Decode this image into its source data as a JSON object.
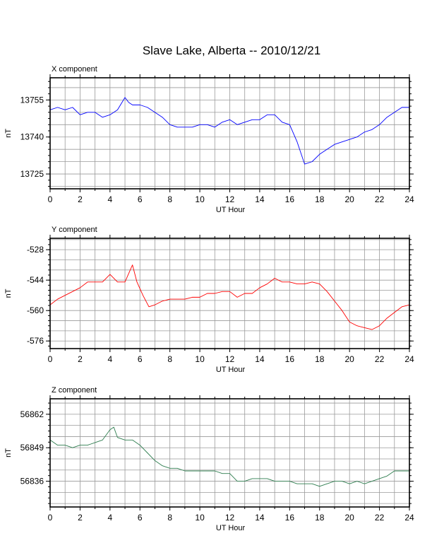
{
  "title": "Slave Lake, Alberta -- 2010/12/21",
  "chart_data": [
    {
      "type": "line",
      "panel_label": "X component",
      "xlabel": "UT Hour",
      "ylabel": "nT",
      "xlim": [
        0,
        24
      ],
      "ylim": [
        13719,
        13764
      ],
      "xticks": [
        0,
        2,
        4,
        6,
        8,
        10,
        12,
        14,
        16,
        18,
        20,
        22,
        24
      ],
      "yticks": [
        13725,
        13740,
        13755
      ],
      "grid": true,
      "color": "#0000ff",
      "series": [
        {
          "x": [
            0,
            0.5,
            1,
            1.5,
            2,
            2.5,
            3,
            3.5,
            4,
            4.5,
            5,
            5.25,
            5.5,
            6,
            6.5,
            7,
            7.5,
            8,
            8.5,
            9,
            9.5,
            10,
            10.5,
            11,
            11.5,
            12,
            12.5,
            13,
            13.5,
            14,
            14.5,
            15,
            15.5,
            16,
            16.5,
            17,
            17.5,
            18,
            18.5,
            19,
            19.5,
            20,
            20.5,
            21,
            21.5,
            22,
            22.5,
            23,
            23.5,
            24
          ],
          "y": [
            13751,
            13752,
            13751,
            13752,
            13749,
            13750,
            13750,
            13748,
            13749,
            13751,
            13756,
            13754,
            13753,
            13753,
            13752,
            13750,
            13748,
            13745,
            13744,
            13744,
            13744,
            13745,
            13745,
            13744,
            13746,
            13747,
            13745,
            13746,
            13747,
            13747,
            13749,
            13749,
            13746,
            13745,
            13738,
            13729,
            13730,
            13733,
            13735,
            13737,
            13738,
            13739,
            13740,
            13742,
            13743,
            13745,
            13748,
            13750,
            13752,
            13752
          ]
        }
      ]
    },
    {
      "type": "line",
      "panel_label": "Y component",
      "xlabel": "UT Hour",
      "ylabel": "nT",
      "xlim": [
        0,
        24
      ],
      "ylim": [
        -580,
        -522
      ],
      "xticks": [
        0,
        2,
        4,
        6,
        8,
        10,
        12,
        14,
        16,
        18,
        20,
        22,
        24
      ],
      "yticks": [
        -576,
        -560,
        -544,
        -528
      ],
      "grid": true,
      "color": "#ff0000",
      "series": [
        {
          "x": [
            0,
            0.5,
            1,
            1.5,
            2,
            2.5,
            3,
            3.5,
            4,
            4.5,
            5,
            5.5,
            5.8,
            6.2,
            6.6,
            7,
            7.5,
            8,
            8.5,
            9,
            9.5,
            10,
            10.5,
            11,
            11.5,
            12,
            12.5,
            13,
            13.5,
            14,
            14.5,
            15,
            15.5,
            16,
            16.5,
            17,
            17.5,
            18,
            18.5,
            19,
            19.5,
            20,
            20.5,
            21,
            21.5,
            22,
            22.5,
            23,
            23.5,
            24
          ],
          "y": [
            -557,
            -554,
            -552,
            -550,
            -548,
            -545,
            -545,
            -545,
            -541,
            -545,
            -545,
            -536,
            -545,
            -552,
            -558,
            -557,
            -555,
            -554,
            -554,
            -554,
            -553,
            -553,
            -551,
            -551,
            -550,
            -550,
            -553,
            -551,
            -551,
            -548,
            -546,
            -543,
            -545,
            -545,
            -546,
            -546,
            -545,
            -546,
            -550,
            -555,
            -560,
            -566,
            -568,
            -569,
            -570,
            -568,
            -564,
            -561,
            -558,
            -557
          ]
        }
      ]
    },
    {
      "type": "line",
      "panel_label": "Z component",
      "xlabel": "UT Hour",
      "ylabel": "nT",
      "xlim": [
        0,
        24
      ],
      "ylim": [
        56826,
        56868
      ],
      "xticks": [
        0,
        2,
        4,
        6,
        8,
        10,
        12,
        14,
        16,
        18,
        20,
        22,
        24
      ],
      "yticks": [
        56836,
        56849,
        56862
      ],
      "grid": true,
      "color": "#2e7d4f",
      "series": [
        {
          "x": [
            0,
            0.5,
            1,
            1.5,
            2,
            2.5,
            3,
            3.5,
            4,
            4.25,
            4.5,
            5,
            5.5,
            6,
            6.5,
            7,
            7.5,
            8,
            8.5,
            9,
            9.5,
            10,
            10.5,
            11,
            11.5,
            12,
            12.5,
            13,
            13.5,
            14,
            14.5,
            15,
            15.5,
            16,
            16.5,
            17,
            17.5,
            18,
            18.5,
            19,
            19.5,
            20,
            20.5,
            21,
            21.5,
            22,
            22.5,
            23,
            23.5,
            24
          ],
          "y": [
            56852,
            56850,
            56850,
            56849,
            56850,
            56850,
            56851,
            56852,
            56856,
            56857,
            56853,
            56852,
            56852,
            56850,
            56847,
            56844,
            56842,
            56841,
            56841,
            56840,
            56840,
            56840,
            56840,
            56840,
            56839,
            56839,
            56836,
            56836,
            56837,
            56837,
            56837,
            56836,
            56836,
            56836,
            56835,
            56835,
            56835,
            56834,
            56835,
            56836,
            56836,
            56835,
            56836,
            56835,
            56836,
            56837,
            56838,
            56840,
            56840,
            56840
          ]
        }
      ]
    }
  ]
}
